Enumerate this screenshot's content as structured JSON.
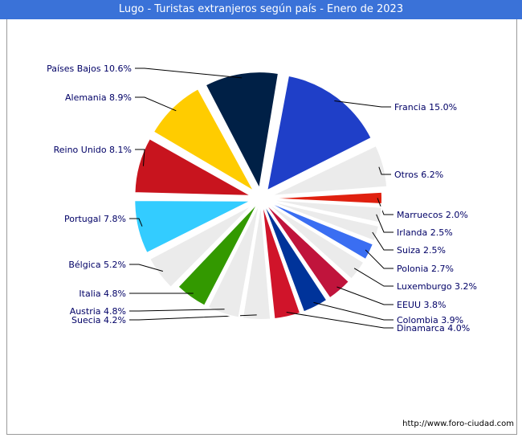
{
  "title": "Lugo - Turistas extranjeros según país - Enero de 2023",
  "source": "http://www.foro-ciudad.com",
  "chart_data": {
    "type": "pie",
    "title": "Lugo - Turistas extranjeros según país - Enero de 2023",
    "slices": [
      {
        "name": "Francia",
        "value": 15.0,
        "label": "Francia 15.0%",
        "color": "#1f3fc8"
      },
      {
        "name": "Otros",
        "value": 6.2,
        "label": "Otros 6.2%",
        "color": "#ebebeb"
      },
      {
        "name": "Marruecos",
        "value": 2.0,
        "label": "Marruecos 2.0%",
        "color": "#e0200f"
      },
      {
        "name": "Irlanda",
        "value": 2.5,
        "label": "Irlanda 2.5%",
        "color": "#ebebeb"
      },
      {
        "name": "Suiza",
        "value": 2.5,
        "label": "Suiza 2.5%",
        "color": "#ebebeb"
      },
      {
        "name": "Polonia",
        "value": 2.7,
        "label": "Polonia 2.7%",
        "color": "#3a6ef2"
      },
      {
        "name": "Luxemburgo",
        "value": 3.2,
        "label": "Luxemburgo 3.2%",
        "color": "#ebebeb"
      },
      {
        "name": "EEUU",
        "value": 3.8,
        "label": "EEUU 3.8%",
        "color": "#c0143c"
      },
      {
        "name": "Colombia",
        "value": 3.9,
        "label": "Colombia 3.9%",
        "color": "#00339a"
      },
      {
        "name": "Dinamarca",
        "value": 4.0,
        "label": "Dinamarca 4.0%",
        "color": "#d0142a"
      },
      {
        "name": "Suecia",
        "value": 4.2,
        "label": "Suecia 4.2%",
        "color": "#ebebeb"
      },
      {
        "name": "Austria",
        "value": 4.8,
        "label": "Austria 4.8%",
        "color": "#ebebeb"
      },
      {
        "name": "Italia",
        "value": 4.8,
        "label": "Italia 4.8%",
        "color": "#339900"
      },
      {
        "name": "Bélgica",
        "value": 5.2,
        "label": "Bélgica 5.2%",
        "color": "#ebebeb"
      },
      {
        "name": "Portugal",
        "value": 7.8,
        "label": "Portugal 7.8%",
        "color": "#33ccff"
      },
      {
        "name": "Reino Unido",
        "value": 8.1,
        "label": "Reino Unido 8.1%",
        "color": "#c8141e"
      },
      {
        "name": "Alemania",
        "value": 8.9,
        "label": "Alemania 8.9%",
        "color": "#ffcc00"
      },
      {
        "name": "Países Bajos",
        "value": 10.6,
        "label": "Países Bajos 10.6%",
        "color": "#002046"
      }
    ]
  }
}
